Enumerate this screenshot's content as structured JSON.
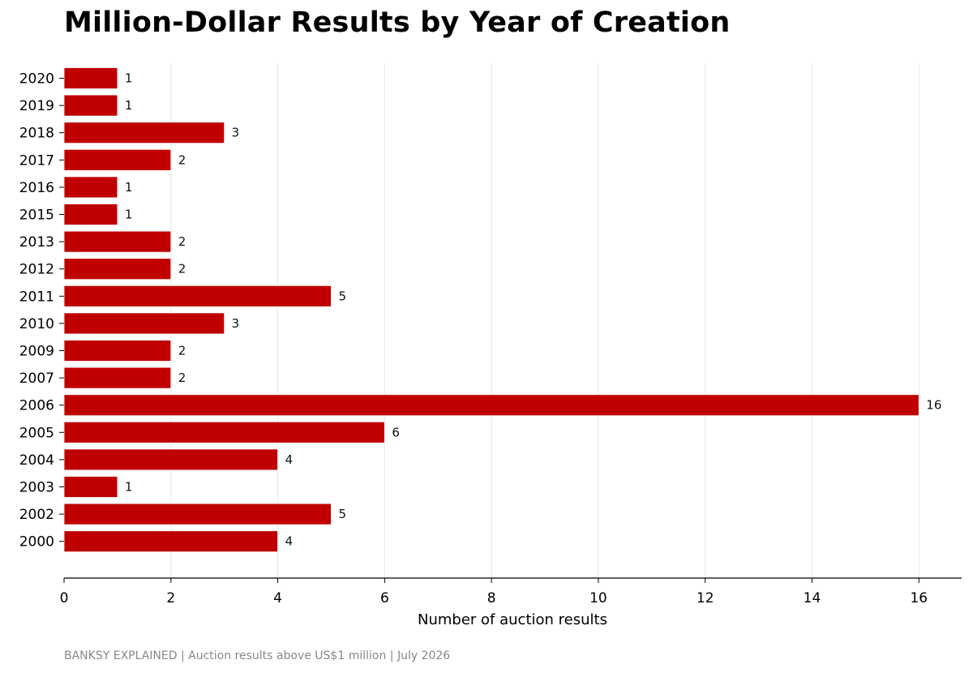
{
  "chart_data": {
    "type": "bar",
    "orientation": "horizontal",
    "title": "Million-Dollar Results by Year of Creation",
    "xlabel": "Number of auction results",
    "ylabel": "",
    "categories": [
      "2020",
      "2019",
      "2018",
      "2017",
      "2016",
      "2015",
      "2013",
      "2012",
      "2011",
      "2010",
      "2009",
      "2007",
      "2006",
      "2005",
      "2004",
      "2003",
      "2002",
      "2000"
    ],
    "values": [
      1,
      1,
      3,
      2,
      1,
      1,
      2,
      2,
      5,
      3,
      2,
      2,
      16,
      6,
      4,
      1,
      5,
      4
    ],
    "xlim": [
      0,
      16.8
    ],
    "xticks": [
      0,
      2,
      4,
      6,
      8,
      10,
      12,
      14,
      16
    ],
    "grid": "vertical",
    "bar_color": "#c00000",
    "data_labels": true
  },
  "footer": "BANKSY EXPLAINED  |  Auction results above US$1 million  |  July 2026"
}
